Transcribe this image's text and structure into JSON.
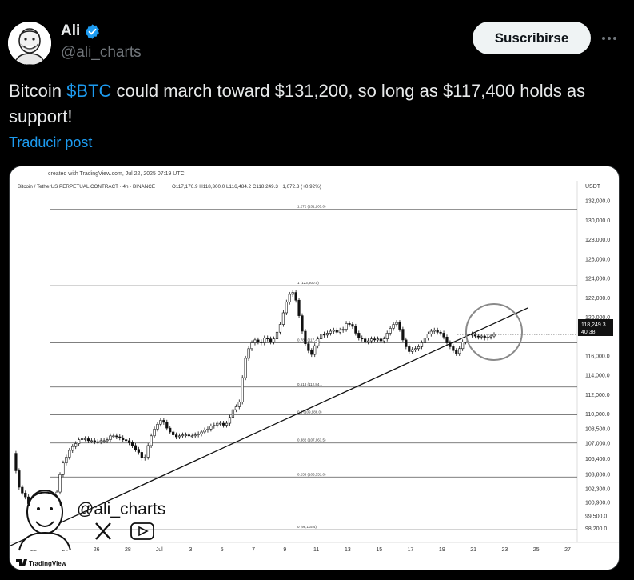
{
  "author": {
    "name": "Ali",
    "handle": "@ali_charts",
    "verified_icon": "verified-badge-icon",
    "avatar_icon": "avatar-caricature-icon"
  },
  "actions": {
    "subscribe_label": "Suscribirse",
    "more_icon": "more-dots-icon"
  },
  "post": {
    "text_before": "Bitcoin ",
    "cashtag": "$BTC",
    "text_after": " could march toward $131,200, so long as $117,400 holds as support!",
    "translate_label": "Traducir post"
  },
  "colors": {
    "accent": "#1d9bf0",
    "background": "#000000",
    "text": "#e7e9ea",
    "muted": "#71767b"
  },
  "chart_header": {
    "created": "created with TradingView.com, Jul 22, 2025 07:19 UTC",
    "symbol": "Bitcoin / TetherUS PERPETUAL CONTRACT · 4h · BINANCE",
    "ohlc": "O117,176.9  H118,300.0  L116,484.2  C118,249.3  +1,072.3 (+0.92%)",
    "currency": "USDT",
    "watermark_handle": "@ali_charts",
    "brand": "TradingView",
    "last_price": "118,249.3",
    "countdown": "40:38"
  },
  "chart_data": {
    "type": "line",
    "y_ticks": [
      132000,
      130000,
      128000,
      126000,
      124000,
      122000,
      120000,
      116000,
      114000,
      112000,
      110000,
      108500,
      107000,
      105400,
      103800,
      102300,
      100900,
      99500,
      98200
    ],
    "y_tick_labels": [
      "132,000.0",
      "130,000.0",
      "128,000.0",
      "126,000.0",
      "124,000.0",
      "122,000.0",
      "120,000.0",
      "116,000.0",
      "114,000.0",
      "112,000.0",
      "110,000.0",
      "108,500.0",
      "107,000.0",
      "105,400.0",
      "103,800.0",
      "102,300.0",
      "100,900.0",
      "99,500.0",
      "98,200.0"
    ],
    "x_tick_labels": [
      "22",
      "24",
      "26",
      "28",
      "Jul",
      "3",
      "5",
      "7",
      "9",
      "11",
      "13",
      "15",
      "17",
      "19",
      "21",
      "23",
      "25",
      "27"
    ],
    "fib_levels": [
      {
        "label": "1.272 (131,205.0)",
        "value": 131205
      },
      {
        "label": "1 (123,300.0)",
        "value": 123300
      },
      {
        "label": "0.786 (117,4...",
        "value": 117400
      },
      {
        "label": "0.618 (112,84...",
        "value": 112840
      },
      {
        "label": "0.5 (109,986.0)",
        "value": 109986
      },
      {
        "label": "0.382 (107,063.5)",
        "value": 107063
      },
      {
        "label": "0.236 (103,551.0)",
        "value": 103551
      },
      {
        "label": "0 (98,115.4)",
        "value": 98115
      }
    ],
    "series": [
      {
        "name": "",
        "x": [
          0,
          4,
          8,
          12,
          16,
          20,
          24,
          28,
          32,
          36,
          40,
          44,
          48,
          52,
          56,
          60,
          64,
          68,
          72,
          76,
          80,
          84,
          88,
          92,
          96,
          100,
          104,
          108,
          112,
          116,
          120,
          124,
          128,
          132,
          136,
          140,
          144,
          148,
          152,
          156,
          160,
          164,
          168,
          172,
          176,
          180,
          184,
          188,
          192,
          196,
          200,
          204,
          208,
          212,
          216,
          220,
          224,
          228,
          232,
          236,
          240,
          244,
          248,
          252,
          256,
          260,
          264,
          268,
          272,
          276,
          280,
          284,
          288,
          292,
          296,
          300,
          304,
          308,
          312,
          316,
          320,
          324,
          328,
          332,
          336,
          340,
          344,
          348,
          352,
          356,
          360,
          364,
          368,
          372,
          376,
          380,
          384,
          388,
          392,
          396,
          400,
          404,
          408,
          412,
          416,
          420,
          424,
          428,
          432,
          436,
          440,
          444,
          448,
          452,
          456,
          460,
          464,
          468,
          472,
          476,
          480,
          484,
          488,
          492,
          496,
          500,
          504,
          508,
          512,
          516,
          520,
          524,
          528,
          532,
          536,
          540,
          544,
          548,
          552,
          556,
          560,
          564,
          568,
          572,
          576,
          580,
          584,
          588,
          592,
          596,
          600,
          604,
          608,
          612
        ],
        "values": [
          106000,
          104200,
          102500,
          101900,
          101500,
          100800,
          99900,
          99500,
          98800,
          98600,
          98200,
          98000,
          98900,
          100300,
          102000,
          103800,
          105000,
          105600,
          106300,
          106700,
          107000,
          107400,
          107500,
          107500,
          107300,
          107300,
          107200,
          107200,
          107300,
          107300,
          107400,
          107800,
          107800,
          107700,
          107600,
          107400,
          107300,
          107100,
          106800,
          106400,
          106100,
          105500,
          105600,
          106800,
          107800,
          108500,
          109000,
          109400,
          109200,
          108600,
          108200,
          107900,
          107700,
          107800,
          107900,
          107900,
          107800,
          107800,
          107900,
          108000,
          108200,
          108400,
          108500,
          108800,
          108900,
          109100,
          109100,
          108900,
          109100,
          109700,
          110500,
          110800,
          111300,
          113800,
          115800,
          116800,
          117400,
          117700,
          117500,
          117400,
          117900,
          117800,
          117500,
          117800,
          118500,
          119300,
          120500,
          121600,
          122400,
          122600,
          121800,
          120200,
          118600,
          117300,
          116600,
          116200,
          117100,
          117800,
          118300,
          118200,
          118400,
          118600,
          118700,
          118500,
          118700,
          118800,
          119400,
          119300,
          119100,
          118400,
          117900,
          117800,
          117500,
          117600,
          117800,
          117700,
          117800,
          117600,
          117800,
          118400,
          118900,
          119300,
          119500,
          118800,
          117700,
          117000,
          116500,
          116700,
          116800,
          117000,
          117400,
          117900,
          118300,
          118600,
          118700,
          118500,
          118400,
          118000,
          117400,
          117000,
          116600,
          116300,
          116800,
          117500,
          118200,
          118300,
          118200,
          118100,
          118000,
          118100,
          117900,
          118000,
          118100,
          118249
        ]
      }
    ],
    "trendline": {
      "from": {
        "x": 0,
        "y": 96200
      },
      "to": {
        "x": 660,
        "y": 121000
      }
    },
    "ylim": [
      97300,
      132800
    ],
    "grid": false
  }
}
